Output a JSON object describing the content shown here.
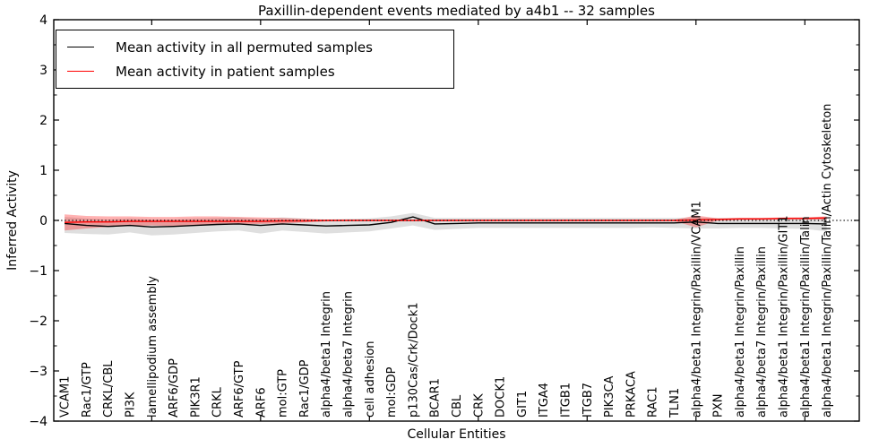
{
  "chart_data": {
    "type": "line",
    "title": "Paxillin-dependent events mediated by a4b1 -- 32 samples",
    "xlabel": "Cellular Entities",
    "ylabel": "Inferred Activity",
    "ylim": [
      -4,
      4
    ],
    "yticks": [
      4,
      3,
      2,
      1,
      0,
      -1,
      -2,
      -3,
      -4
    ],
    "y_minor_step": 0.5,
    "xlim": [
      0.5,
      37.5
    ],
    "x_major_ticks": [
      5,
      10,
      15,
      20,
      25,
      30,
      35
    ],
    "grid": false,
    "legend_position": "upper-left",
    "categories": [
      "VCAM1",
      "Rac1/GTP",
      "CRKL/CBL",
      "PI3K",
      "lamellipodium assembly",
      "ARF6/GDP",
      "PIK3R1",
      "CRKL",
      "ARF6/GTP",
      "ARF6",
      "mol:GTP",
      "Rac1/GDP",
      "alpha4/beta1 Integrin",
      "alpha4/beta7 Integrin",
      "cell adhesion",
      "mol:GDP",
      "p130Cas/Crk/Dock1",
      "BCAR1",
      "CBL",
      "CRK",
      "DOCK1",
      "GIT1",
      "ITGA4",
      "ITGB1",
      "ITGB7",
      "PIK3CA",
      "PRKACA",
      "RAC1",
      "TLN1",
      "alpha4/beta1 Integrin/Paxillin/VCAM1",
      "PXN",
      "alpha4/beta1 Integrin/Paxillin",
      "alpha4/beta7 Integrin/Paxillin",
      "alpha4/beta1 Integrin/Paxillin/GIT1",
      "alpha4/beta1 Integrin/Paxillin/Talin",
      "alpha4/beta1 Integrin/Paxillin/Talin/Actin Cytoskeleton"
    ],
    "series": [
      {
        "name": "Mean activity in all permuted samples",
        "color": "#000000",
        "values": [
          -0.06,
          -0.1,
          -0.12,
          -0.1,
          -0.13,
          -0.12,
          -0.1,
          -0.08,
          -0.07,
          -0.1,
          -0.07,
          -0.09,
          -0.11,
          -0.1,
          -0.09,
          -0.04,
          0.07,
          -0.07,
          -0.06,
          -0.05,
          -0.05,
          -0.05,
          -0.05,
          -0.05,
          -0.05,
          -0.05,
          -0.05,
          -0.05,
          -0.05,
          -0.03,
          -0.06,
          -0.06,
          -0.06,
          -0.06,
          -0.06,
          -0.07
        ]
      },
      {
        "name": "Mean activity in patient samples",
        "color": "#ff0000",
        "values": [
          -0.04,
          -0.03,
          -0.03,
          -0.02,
          -0.02,
          -0.02,
          -0.02,
          -0.02,
          -0.02,
          -0.02,
          -0.01,
          -0.01,
          0,
          0,
          0,
          0,
          0,
          0,
          0,
          0,
          0,
          0,
          0,
          0,
          0,
          0,
          0,
          0,
          0,
          0.01,
          0.02,
          0.03,
          0.03,
          0.04,
          0.04,
          0.05
        ]
      }
    ],
    "bands": [
      {
        "name": "permuted samples range",
        "color": "#808080",
        "opacity": 0.25,
        "upper": [
          0.07,
          0.04,
          0.02,
          0.04,
          0.02,
          0.02,
          0.04,
          0.05,
          0.06,
          0.03,
          0.06,
          0.04,
          0.02,
          0.03,
          0.04,
          0.08,
          0.15,
          0.05,
          0.05,
          0.05,
          0.05,
          0.05,
          0.05,
          0.05,
          0.05,
          0.05,
          0.05,
          0.05,
          0.05,
          0.06,
          0.05,
          0.05,
          0.05,
          0.05,
          0.06,
          0.07
        ],
        "lower": [
          -0.25,
          -0.27,
          -0.28,
          -0.24,
          -0.3,
          -0.28,
          -0.25,
          -0.22,
          -0.2,
          -0.26,
          -0.2,
          -0.23,
          -0.26,
          -0.24,
          -0.22,
          -0.16,
          -0.1,
          -0.19,
          -0.17,
          -0.15,
          -0.15,
          -0.15,
          -0.15,
          -0.15,
          -0.15,
          -0.15,
          -0.15,
          -0.14,
          -0.15,
          -0.16,
          -0.16,
          -0.15,
          -0.15,
          -0.16,
          -0.17,
          -0.22
        ]
      },
      {
        "name": "patient samples range",
        "color": "#ff0000",
        "opacity": 0.3,
        "upper": [
          0.12,
          0.09,
          0.08,
          0.08,
          0.07,
          0.07,
          0.08,
          0.08,
          0.07,
          0.06,
          0.05,
          0.03,
          0.01,
          0.01,
          0.01,
          0.01,
          0.01,
          0.01,
          0.01,
          0.01,
          0.01,
          0.01,
          0.01,
          0.01,
          0.01,
          0.01,
          0.01,
          0.01,
          0.01,
          0.1,
          0.04,
          0.05,
          0.05,
          0.06,
          0.06,
          0.08
        ],
        "lower": [
          -0.2,
          -0.16,
          -0.13,
          -0.11,
          -0.1,
          -0.11,
          -0.1,
          -0.09,
          -0.08,
          -0.07,
          -0.06,
          -0.04,
          -0.02,
          -0.01,
          -0.01,
          -0.01,
          -0.01,
          -0.01,
          -0.01,
          -0.01,
          -0.01,
          -0.01,
          -0.01,
          -0.01,
          -0.01,
          -0.01,
          -0.01,
          -0.01,
          -0.01,
          -0.14,
          0.0,
          0.01,
          0.01,
          0.02,
          0.02,
          0.01
        ]
      }
    ],
    "reference_line": {
      "y": 0,
      "style": "dotted",
      "color": "#000000"
    }
  }
}
